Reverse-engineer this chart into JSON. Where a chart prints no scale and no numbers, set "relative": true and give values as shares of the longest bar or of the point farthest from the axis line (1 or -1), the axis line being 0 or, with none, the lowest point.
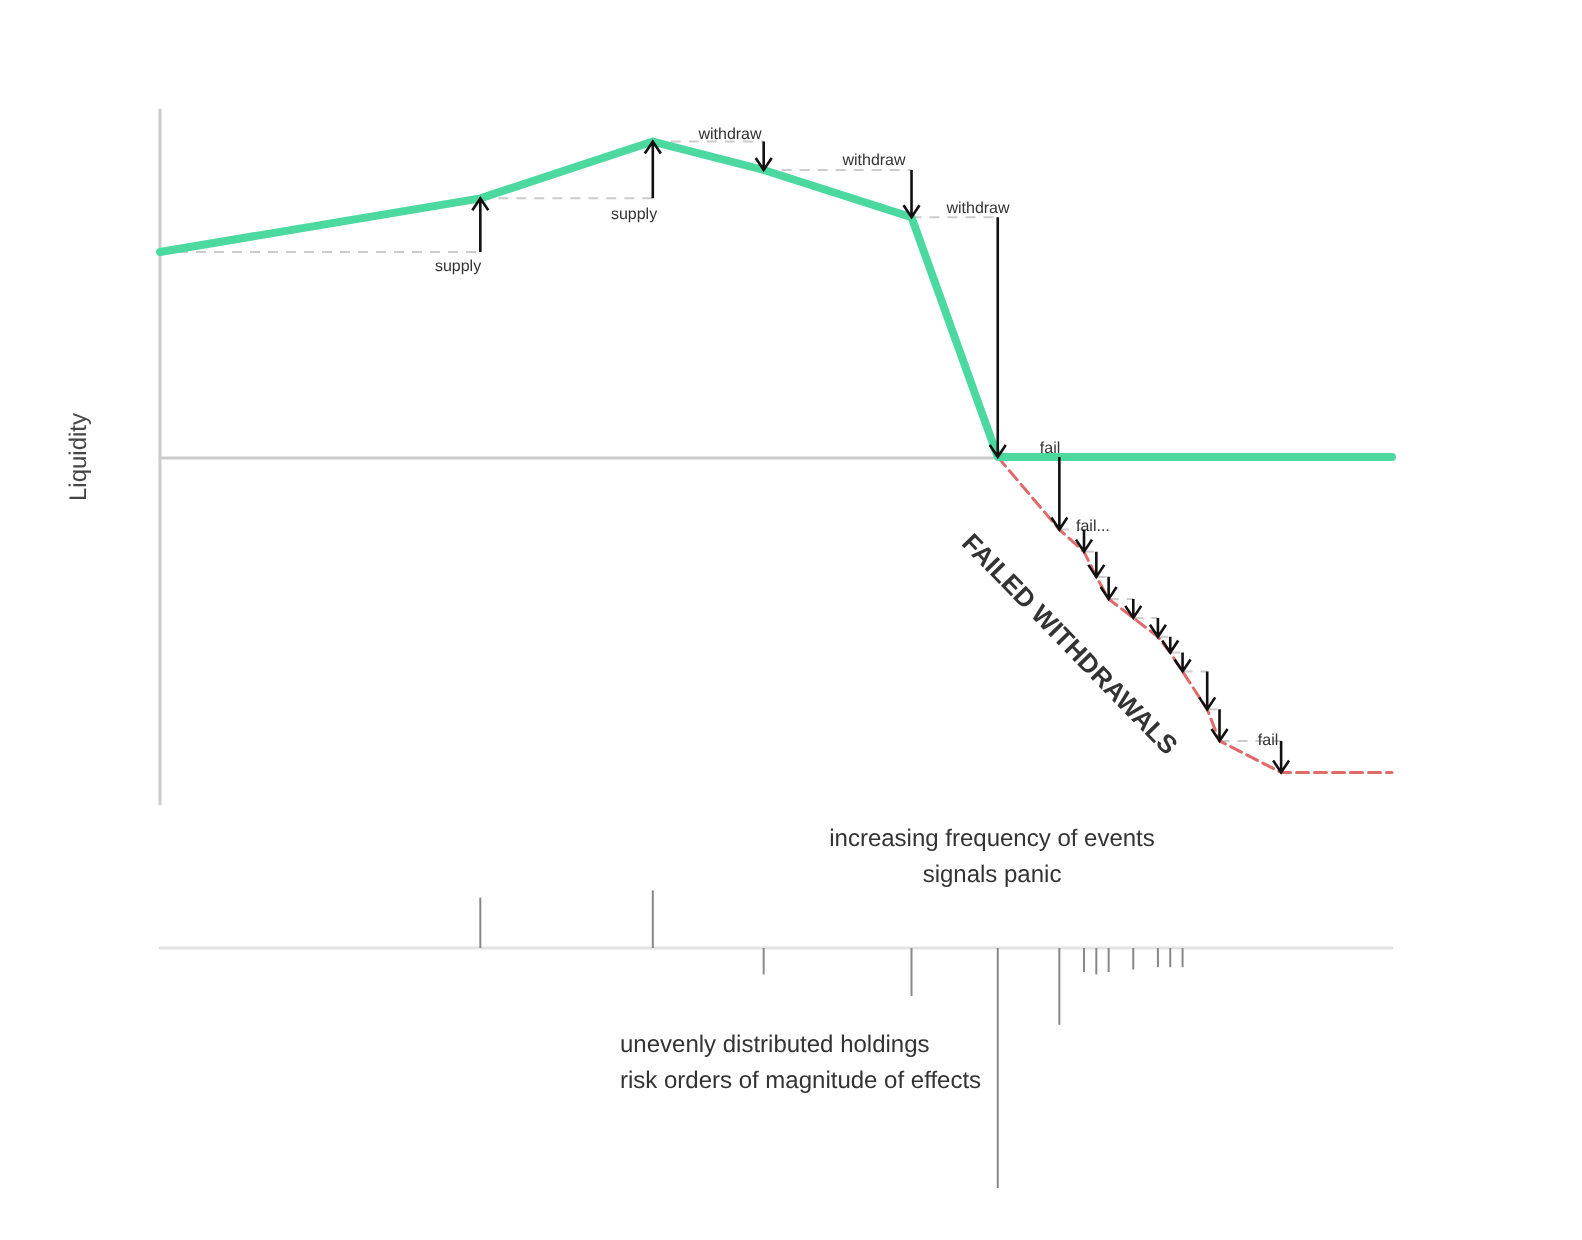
{
  "chart_data": [
    {
      "type": "line",
      "ylabel": "Liquidity",
      "relative": true,
      "annotations": [
        "FAILED WITHDRAWALS",
        "supply",
        "supply",
        "withdraw",
        "withdraw",
        "withdraw",
        "fail",
        "fail...",
        "fail"
      ],
      "categories": [
        null,
        null,
        null,
        null,
        null,
        null,
        null,
        null,
        null,
        null,
        null,
        null,
        null,
        null,
        null,
        null,
        null,
        null,
        null,
        null,
        null,
        null,
        null,
        null,
        null,
        null,
        null,
        null,
        null,
        null,
        null,
        null,
        null,
        null,
        null,
        null,
        null,
        null,
        null,
        null,
        null,
        null,
        null,
        null,
        null,
        null,
        null,
        null,
        null,
        null,
        null,
        null,
        null,
        null,
        null,
        null,
        null,
        null,
        null,
        null,
        null,
        null,
        null,
        null,
        null,
        null,
        null,
        null,
        null,
        null,
        null,
        null,
        null,
        null,
        null,
        null,
        null,
        null,
        null,
        null,
        null,
        null,
        null,
        null,
        null,
        null,
        null,
        null,
        null,
        null,
        null,
        null,
        null,
        null,
        null,
        null,
        null,
        null,
        null,
        null,
        null
      ],
      "series": [
        {
          "color": "#4cd9a0",
          "line_style": "solid",
          "values": [
            0.65,
            null,
            null,
            null,
            null,
            null,
            null,
            null,
            null,
            null,
            null,
            null,
            null,
            null,
            null,
            null,
            null,
            null,
            null,
            null,
            null,
            null,
            null,
            null,
            null,
            null,
            0.82,
            null,
            null,
            null,
            null,
            null,
            null,
            null,
            null,
            null,
            null,
            null,
            null,
            null,
            1,
            null,
            null,
            null,
            null,
            null,
            null,
            null,
            null,
            0.91,
            null,
            null,
            null,
            null,
            null,
            null,
            null,
            null,
            null,
            null,
            null,
            0.76,
            null,
            null,
            null,
            null,
            null,
            null,
            0,
            null,
            null,
            null,
            null,
            null,
            null,
            null,
            null,
            null,
            null,
            null,
            null,
            null,
            null,
            null,
            null,
            null,
            null,
            null,
            null,
            null,
            null,
            null,
            null,
            null,
            null,
            null,
            null,
            null,
            null,
            null,
            0
          ]
        },
        {
          "color": "#e06a6a",
          "line_style": "dashed",
          "values": [
            null,
            null,
            null,
            null,
            null,
            null,
            null,
            null,
            null,
            null,
            null,
            null,
            null,
            null,
            null,
            null,
            null,
            null,
            null,
            null,
            null,
            null,
            null,
            null,
            null,
            null,
            null,
            null,
            null,
            null,
            null,
            null,
            null,
            null,
            null,
            null,
            null,
            null,
            null,
            null,
            null,
            null,
            null,
            null,
            null,
            null,
            null,
            null,
            null,
            null,
            null,
            null,
            null,
            null,
            null,
            null,
            null,
            null,
            null,
            null,
            null,
            null,
            null,
            null,
            null,
            null,
            null,
            null,
            0,
            null,
            null,
            null,
            null,
            -0.23,
            null,
            -0.3,
            -0.38,
            -0.45,
            null,
            -0.51,
            null,
            -0.57,
            -0.62,
            -0.68,
            null,
            -0.8,
            -0.9,
            null,
            null,
            null,
            null,
            -1.0,
            null,
            null,
            null,
            null,
            null,
            null,
            null,
            null,
            -1.0
          ]
        }
      ]
    },
    {
      "type": "bar",
      "relative": true,
      "color": "#888888",
      "annotations": [
        "increasing frequency of events\nsignals panic",
        "unevenly distributed holdings\nrisk orders of magnitude of effects"
      ],
      "categories": [
        null,
        null,
        null,
        null,
        null,
        null,
        null,
        null,
        null,
        null,
        null,
        null,
        null,
        null,
        null,
        null,
        null,
        null,
        null,
        null,
        null,
        null,
        null,
        null,
        null,
        null,
        null,
        null,
        null,
        null,
        null,
        null,
        null,
        null,
        null,
        null,
        null,
        null,
        null,
        null,
        null,
        null,
        null,
        null,
        null,
        null,
        null,
        null,
        null,
        null,
        null,
        null,
        null,
        null,
        null,
        null,
        null,
        null,
        null,
        null,
        null,
        null,
        null,
        null,
        null,
        null,
        null,
        null,
        null,
        null,
        null,
        null,
        null,
        null,
        null,
        null,
        null,
        null,
        null,
        null,
        null,
        null,
        null,
        null,
        null,
        null,
        null,
        null,
        null,
        null,
        null,
        null,
        null,
        null,
        null,
        null,
        null,
        null,
        null,
        null,
        null
      ],
      "values": [
        null,
        null,
        null,
        null,
        null,
        null,
        null,
        null,
        null,
        null,
        null,
        null,
        null,
        null,
        null,
        null,
        null,
        null,
        null,
        null,
        null,
        null,
        null,
        null,
        null,
        null,
        0.21,
        null,
        null,
        null,
        null,
        null,
        null,
        null,
        null,
        null,
        null,
        null,
        null,
        null,
        0.24,
        null,
        null,
        null,
        null,
        null,
        null,
        null,
        null,
        -0.11,
        null,
        null,
        null,
        null,
        null,
        null,
        null,
        null,
        null,
        null,
        null,
        -0.2,
        null,
        null,
        null,
        null,
        null,
        null,
        -1,
        null,
        null,
        null,
        null,
        -0.32,
        null,
        -0.1,
        -0.11,
        -0.1,
        null,
        -0.09,
        null,
        -0.08,
        -0.08,
        -0.08,
        null,
        null,
        null,
        null,
        null,
        null,
        null,
        null,
        null,
        null,
        null,
        null,
        null,
        null,
        null,
        null,
        null
      ]
    }
  ]
}
